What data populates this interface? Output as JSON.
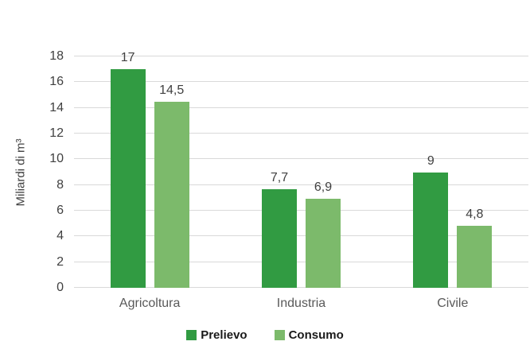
{
  "chart_data": {
    "type": "bar",
    "title": "",
    "categories": [
      "Agricoltura",
      "Industria",
      "Civile"
    ],
    "series": [
      {
        "name": "Prelievo",
        "color": "#319b42",
        "values": [
          17,
          7.7,
          9
        ],
        "labels": [
          "17",
          "7,7",
          "9"
        ]
      },
      {
        "name": "Consumo",
        "color": "#7cba6b",
        "values": [
          14.5,
          6.9,
          4.8
        ],
        "labels": [
          "14,5",
          "6,9",
          "4,8"
        ]
      }
    ],
    "xlabel": "",
    "ylabel": "Miliardi di m³",
    "ylim": [
      0,
      18
    ],
    "ytick_step": 2,
    "ytick_labels": [
      "0",
      "2",
      "4",
      "6",
      "8",
      "10",
      "12",
      "14",
      "16",
      "18"
    ],
    "grid": "horizontal",
    "gridline_color": "#d9d9d9",
    "legend_position": "bottom-center",
    "legend_entries": [
      "Prelievo",
      "Consumo"
    ]
  }
}
